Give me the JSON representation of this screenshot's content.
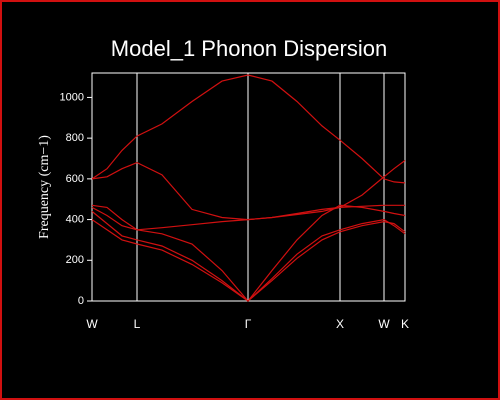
{
  "chart_data": {
    "type": "line",
    "title": "Model_1 Phonon Dispersion",
    "y_label": "Frequency (cm−1)",
    "x": [
      0,
      15,
      30,
      45,
      70,
      100,
      130,
      156,
      180,
      205,
      230,
      248,
      270,
      292,
      302,
      313
    ],
    "xlim": [
      0,
      313
    ],
    "xticks": [
      {
        "value": 0,
        "label": "W"
      },
      {
        "value": 45,
        "label": "L"
      },
      {
        "value": 156,
        "label": "Γ"
      },
      {
        "value": 248,
        "label": "X"
      },
      {
        "value": 292,
        "label": "W"
      },
      {
        "value": 313,
        "label": "K"
      }
    ],
    "ylim": [
      0,
      1120
    ],
    "yticks": [
      0,
      200,
      400,
      600,
      800,
      1000
    ],
    "series": [
      {
        "color": "#d01010",
        "values": [
          600,
          650,
          740,
          810,
          870,
          980,
          1080,
          1110,
          1080,
          980,
          860,
          790,
          700,
          600,
          585,
          580
        ]
      },
      {
        "color": "#d01010",
        "values": [
          600,
          610,
          650,
          680,
          620,
          450,
          410,
          400,
          410,
          430,
          450,
          460,
          520,
          610,
          650,
          690
        ]
      },
      {
        "color": "#d01010",
        "values": [
          460,
          420,
          370,
          350,
          360,
          375,
          390,
          400,
          410,
          425,
          440,
          460,
          465,
          470,
          470,
          470
        ]
      },
      {
        "color": "#d01010",
        "values": [
          470,
          460,
          400,
          350,
          330,
          280,
          150,
          0,
          150,
          300,
          420,
          470,
          460,
          440,
          430,
          420
        ]
      },
      {
        "color": "#d01010",
        "values": [
          440,
          380,
          320,
          300,
          270,
          200,
          100,
          0,
          110,
          230,
          320,
          350,
          380,
          400,
          370,
          330
        ]
      },
      {
        "color": "#d01010",
        "values": [
          400,
          350,
          300,
          280,
          250,
          180,
          90,
          0,
          100,
          210,
          300,
          340,
          370,
          390,
          380,
          340
        ]
      }
    ]
  }
}
